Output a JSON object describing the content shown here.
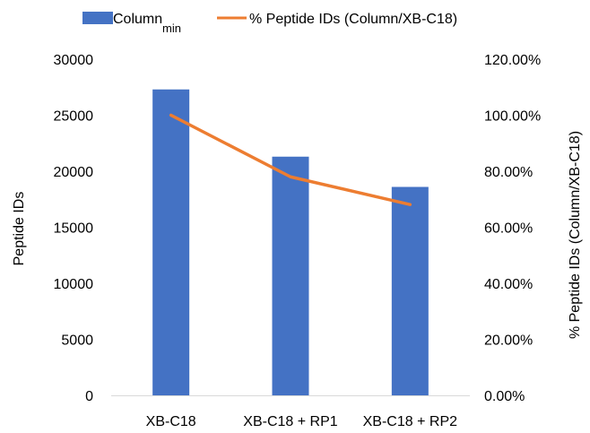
{
  "chart_data": {
    "type": "bar",
    "categories": [
      "XB-C18",
      "XB-C18 + RP1",
      "XB-C18 + RP2"
    ],
    "series": [
      {
        "name": "Column",
        "name_subscript": "min",
        "type": "bar",
        "axis": "left",
        "color": "#4472C4",
        "values": [
          27300,
          21300,
          18600
        ]
      },
      {
        "name": "% Peptide IDs  (Column/XB-C18)",
        "type": "line",
        "axis": "right",
        "color": "#ED7D31",
        "values": [
          100.0,
          78.0,
          68.1
        ]
      }
    ],
    "ylabel": "Peptide IDs",
    "y2label": "% Peptide IDs (Column/XB-C18)",
    "ylim": [
      0,
      30000
    ],
    "y2lim": [
      0,
      120
    ],
    "yticks": [
      "0",
      "5000",
      "10000",
      "15000",
      "20000",
      "25000",
      "30000"
    ],
    "y2ticks": [
      "0.00%",
      "20.00%",
      "40.00%",
      "60.00%",
      "80.00%",
      "100.00%",
      "120.00%"
    ],
    "grid": false,
    "legend": "top"
  }
}
